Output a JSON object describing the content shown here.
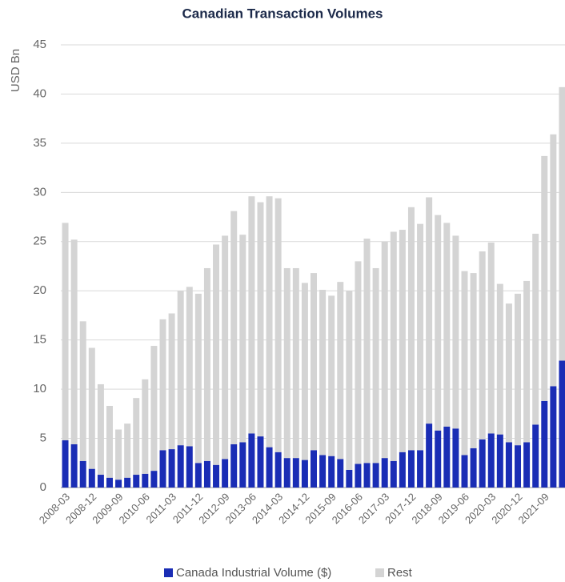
{
  "chart_data": {
    "type": "stacked_bar",
    "title": "Canadian Transaction Volumes",
    "y_label": "USD Bn",
    "categories": [
      "2008-03",
      null,
      null,
      "2008-12",
      null,
      null,
      "2009-09",
      null,
      null,
      "2010-06",
      null,
      null,
      "2011-03",
      null,
      null,
      "2011-12",
      null,
      null,
      "2012-09",
      null,
      null,
      "2013-06",
      null,
      null,
      "2014-03",
      null,
      null,
      "2014-12",
      null,
      null,
      "2015-09",
      null,
      null,
      "2016-06",
      null,
      null,
      "2017-03",
      null,
      null,
      "2017-12",
      null,
      null,
      "2018-09",
      null,
      null,
      "2019-06",
      null,
      null,
      "2020-03",
      null,
      null,
      "2020-12",
      null,
      null,
      "2021-09",
      null,
      null
    ],
    "series": [
      {
        "name": "Canada Industrial Volume ($)",
        "color": "#1a2db5",
        "values": [
          4.8,
          4.4,
          2.7,
          1.9,
          1.3,
          1.0,
          0.8,
          1.0,
          1.3,
          1.4,
          1.7,
          3.8,
          3.9,
          4.3,
          4.2,
          2.5,
          2.7,
          2.3,
          2.9,
          4.4,
          4.6,
          5.5,
          5.2,
          4.1,
          3.6,
          3.0,
          3.0,
          2.8,
          3.8,
          3.3,
          3.2,
          2.9,
          1.8,
          2.4,
          2.5,
          2.5,
          3.0,
          2.7,
          3.6,
          3.8,
          3.8,
          6.5,
          5.8,
          6.2,
          6.0,
          3.3,
          4.0,
          4.9,
          5.5,
          5.4,
          4.6,
          4.3,
          4.6,
          6.4,
          8.8,
          10.3,
          12.9
        ]
      },
      {
        "name": "Rest",
        "color": "#d4d4d4",
        "values": [
          22.1,
          20.8,
          14.2,
          12.3,
          9.2,
          7.3,
          5.1,
          5.5,
          7.8,
          9.6,
          12.7,
          13.3,
          13.8,
          15.7,
          16.2,
          17.2,
          19.6,
          22.4,
          22.7,
          23.7,
          21.1,
          24.1,
          23.8,
          25.5,
          25.8,
          19.3,
          19.3,
          18.0,
          18.0,
          16.8,
          16.3,
          18.0,
          18.2,
          20.6,
          22.8,
          19.8,
          22.0,
          23.3,
          22.6,
          24.7,
          23.0,
          23.0,
          21.9,
          20.7,
          19.6,
          18.7,
          17.8,
          19.1,
          19.4,
          15.3,
          14.1,
          15.4,
          16.4,
          19.4,
          24.9,
          25.6,
          27.8
        ]
      }
    ],
    "ylim": [
      0,
      45
    ],
    "yticks": [
      0,
      5,
      10,
      15,
      20,
      25,
      30,
      35,
      40,
      45
    ],
    "grid": true,
    "legend": "bottom"
  }
}
